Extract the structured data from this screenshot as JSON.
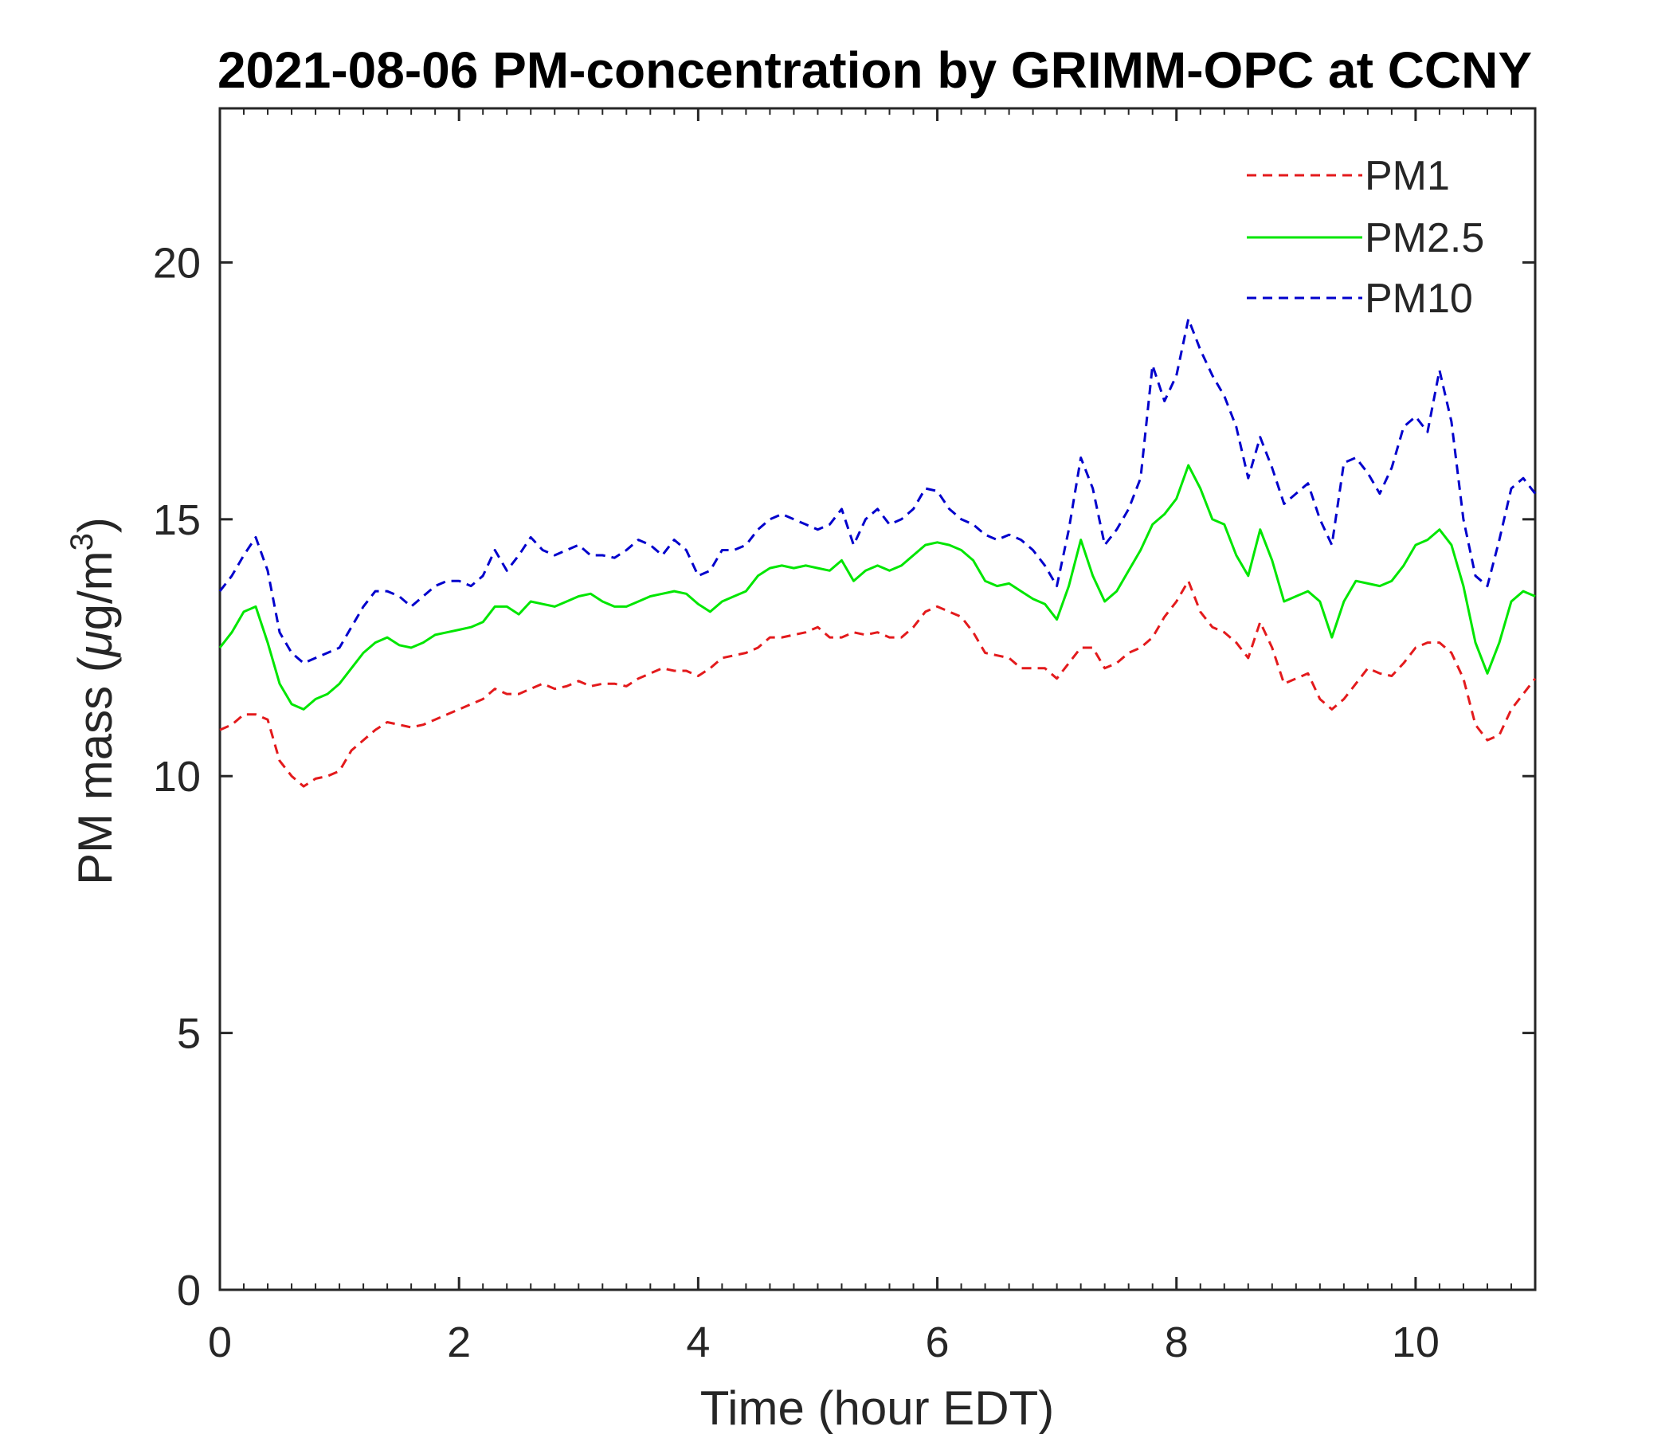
{
  "chart_data": {
    "type": "line",
    "title": "2021-08-06 PM-concentration by GRIMM-OPC at CCNY",
    "xlabel": "Time (hour EDT)",
    "ylabel": "PM mass (μg/m³)",
    "ylabel_parts": {
      "prefix": "PM mass (",
      "mu": "μ",
      "unit": "g/m",
      "exp": "3",
      "suffix": ")"
    },
    "xlim": [
      0,
      11
    ],
    "ylim": [
      0,
      23
    ],
    "xticks": [
      0,
      2,
      4,
      6,
      8,
      10
    ],
    "yticks": [
      0,
      5,
      10,
      15,
      20
    ],
    "grid": false,
    "legend": "top-right",
    "colors": {
      "PM1": "#e31a1c",
      "PM2.5": "#00e600",
      "PM10": "#0000cc",
      "axis": "#262626"
    },
    "series": [
      {
        "name": "PM1",
        "style": "dashed",
        "color": "#e31a1c",
        "x": [
          0,
          0.1,
          0.2,
          0.3,
          0.4,
          0.5,
          0.6,
          0.7,
          0.8,
          0.9,
          1.0,
          1.1,
          1.2,
          1.3,
          1.4,
          1.5,
          1.6,
          1.7,
          1.8,
          1.9,
          2.0,
          2.1,
          2.2,
          2.3,
          2.4,
          2.5,
          2.6,
          2.7,
          2.8,
          2.9,
          3.0,
          3.1,
          3.2,
          3.3,
          3.4,
          3.5,
          3.6,
          3.7,
          3.8,
          3.9,
          4.0,
          4.1,
          4.2,
          4.3,
          4.4,
          4.5,
          4.6,
          4.7,
          4.8,
          4.9,
          5.0,
          5.1,
          5.2,
          5.3,
          5.4,
          5.5,
          5.6,
          5.7,
          5.8,
          5.9,
          6.0,
          6.1,
          6.2,
          6.3,
          6.4,
          6.5,
          6.6,
          6.7,
          6.8,
          6.9,
          7.0,
          7.1,
          7.2,
          7.3,
          7.4,
          7.5,
          7.6,
          7.7,
          7.8,
          7.9,
          8.0,
          8.1,
          8.2,
          8.3,
          8.4,
          8.5,
          8.6,
          8.7,
          8.8,
          8.9,
          9.0,
          9.1,
          9.2,
          9.3,
          9.4,
          9.5,
          9.6,
          9.7,
          9.8,
          9.9,
          10.0,
          10.1,
          10.2,
          10.3,
          10.4,
          10.5,
          10.6,
          10.7,
          10.8,
          10.9,
          11.0
        ],
        "y": [
          10.9,
          11.0,
          11.2,
          11.2,
          11.1,
          10.3,
          10.0,
          9.8,
          9.95,
          10.0,
          10.1,
          10.5,
          10.7,
          10.9,
          11.05,
          11.0,
          10.95,
          11.0,
          11.1,
          11.2,
          11.3,
          11.4,
          11.5,
          11.7,
          11.6,
          11.6,
          11.7,
          11.8,
          11.7,
          11.75,
          11.85,
          11.75,
          11.8,
          11.8,
          11.75,
          11.9,
          12.0,
          12.1,
          12.05,
          12.05,
          11.95,
          12.1,
          12.3,
          12.35,
          12.4,
          12.5,
          12.7,
          12.7,
          12.75,
          12.8,
          12.9,
          12.7,
          12.7,
          12.8,
          12.75,
          12.8,
          12.7,
          12.7,
          12.9,
          13.2,
          13.3,
          13.2,
          13.1,
          12.8,
          12.4,
          12.35,
          12.3,
          12.1,
          12.1,
          12.1,
          11.9,
          12.2,
          12.5,
          12.5,
          12.1,
          12.2,
          12.4,
          12.5,
          12.7,
          13.1,
          13.4,
          13.8,
          13.2,
          12.9,
          12.8,
          12.6,
          12.3,
          13.0,
          12.5,
          11.8,
          11.9,
          12.0,
          11.5,
          11.3,
          11.5,
          11.8,
          12.1,
          12.0,
          11.95,
          12.2,
          12.5,
          12.6,
          12.6,
          12.4,
          11.9,
          11.0,
          10.7,
          10.8,
          11.3,
          11.6,
          11.9
        ]
      },
      {
        "name": "PM2.5",
        "style": "solid",
        "color": "#00e600",
        "x": [
          0,
          0.1,
          0.2,
          0.3,
          0.4,
          0.5,
          0.6,
          0.7,
          0.8,
          0.9,
          1.0,
          1.1,
          1.2,
          1.3,
          1.4,
          1.5,
          1.6,
          1.7,
          1.8,
          1.9,
          2.0,
          2.1,
          2.2,
          2.3,
          2.4,
          2.5,
          2.6,
          2.7,
          2.8,
          2.9,
          3.0,
          3.1,
          3.2,
          3.3,
          3.4,
          3.5,
          3.6,
          3.7,
          3.8,
          3.9,
          4.0,
          4.1,
          4.2,
          4.3,
          4.4,
          4.5,
          4.6,
          4.7,
          4.8,
          4.9,
          5.0,
          5.1,
          5.2,
          5.3,
          5.4,
          5.5,
          5.6,
          5.7,
          5.8,
          5.9,
          6.0,
          6.1,
          6.2,
          6.3,
          6.4,
          6.5,
          6.6,
          6.7,
          6.8,
          6.9,
          7.0,
          7.1,
          7.2,
          7.3,
          7.4,
          7.5,
          7.6,
          7.7,
          7.8,
          7.9,
          8.0,
          8.1,
          8.2,
          8.3,
          8.4,
          8.5,
          8.6,
          8.7,
          8.8,
          8.9,
          9.0,
          9.1,
          9.2,
          9.3,
          9.4,
          9.5,
          9.6,
          9.7,
          9.8,
          9.9,
          10.0,
          10.1,
          10.2,
          10.3,
          10.4,
          10.5,
          10.6,
          10.7,
          10.8,
          10.9,
          11.0
        ],
        "y": [
          12.5,
          12.8,
          13.2,
          13.3,
          12.6,
          11.8,
          11.4,
          11.3,
          11.5,
          11.6,
          11.8,
          12.1,
          12.4,
          12.6,
          12.7,
          12.55,
          12.5,
          12.6,
          12.75,
          12.8,
          12.85,
          12.9,
          13.0,
          13.3,
          13.3,
          13.15,
          13.4,
          13.35,
          13.3,
          13.4,
          13.5,
          13.55,
          13.4,
          13.3,
          13.3,
          13.4,
          13.5,
          13.55,
          13.6,
          13.55,
          13.35,
          13.2,
          13.4,
          13.5,
          13.6,
          13.9,
          14.05,
          14.1,
          14.05,
          14.1,
          14.05,
          14.0,
          14.2,
          13.8,
          14.0,
          14.1,
          14.0,
          14.1,
          14.3,
          14.5,
          14.55,
          14.5,
          14.4,
          14.2,
          13.8,
          13.7,
          13.75,
          13.6,
          13.45,
          13.35,
          13.05,
          13.7,
          14.6,
          13.9,
          13.4,
          13.6,
          14.0,
          14.4,
          14.9,
          15.1,
          15.4,
          16.05,
          15.6,
          15.0,
          14.9,
          14.3,
          13.9,
          14.8,
          14.2,
          13.4,
          13.5,
          13.6,
          13.4,
          12.7,
          13.4,
          13.8,
          13.75,
          13.7,
          13.8,
          14.1,
          14.5,
          14.6,
          14.8,
          14.5,
          13.7,
          12.6,
          12.0,
          12.6,
          13.4,
          13.6,
          13.5
        ]
      },
      {
        "name": "PM10",
        "style": "dashed",
        "color": "#0000cc",
        "x": [
          0,
          0.1,
          0.2,
          0.3,
          0.4,
          0.5,
          0.6,
          0.7,
          0.8,
          0.9,
          1.0,
          1.1,
          1.2,
          1.3,
          1.4,
          1.5,
          1.6,
          1.7,
          1.8,
          1.9,
          2.0,
          2.1,
          2.2,
          2.3,
          2.4,
          2.5,
          2.6,
          2.7,
          2.8,
          2.9,
          3.0,
          3.1,
          3.2,
          3.3,
          3.4,
          3.5,
          3.6,
          3.7,
          3.8,
          3.9,
          4.0,
          4.1,
          4.2,
          4.3,
          4.4,
          4.5,
          4.6,
          4.7,
          4.8,
          4.9,
          5.0,
          5.1,
          5.2,
          5.3,
          5.4,
          5.5,
          5.6,
          5.7,
          5.8,
          5.9,
          6.0,
          6.1,
          6.2,
          6.3,
          6.4,
          6.5,
          6.6,
          6.7,
          6.8,
          6.9,
          7.0,
          7.1,
          7.2,
          7.3,
          7.4,
          7.5,
          7.6,
          7.7,
          7.8,
          7.9,
          8.0,
          8.1,
          8.2,
          8.3,
          8.4,
          8.5,
          8.6,
          8.7,
          8.8,
          8.9,
          9.0,
          9.1,
          9.2,
          9.3,
          9.4,
          9.5,
          9.6,
          9.7,
          9.8,
          9.9,
          10.0,
          10.1,
          10.2,
          10.3,
          10.4,
          10.5,
          10.6,
          10.7,
          10.8,
          10.9,
          11.0
        ],
        "y": [
          13.6,
          13.9,
          14.3,
          14.65,
          14.0,
          12.8,
          12.4,
          12.2,
          12.3,
          12.4,
          12.5,
          12.9,
          13.3,
          13.6,
          13.6,
          13.5,
          13.3,
          13.5,
          13.7,
          13.8,
          13.8,
          13.7,
          13.9,
          14.4,
          14.0,
          14.3,
          14.65,
          14.4,
          14.3,
          14.4,
          14.5,
          14.3,
          14.3,
          14.25,
          14.4,
          14.6,
          14.5,
          14.3,
          14.6,
          14.4,
          13.9,
          14.0,
          14.4,
          14.4,
          14.5,
          14.8,
          15.0,
          15.1,
          15.0,
          14.9,
          14.8,
          14.9,
          15.2,
          14.5,
          15.0,
          15.2,
          14.9,
          15.0,
          15.2,
          15.6,
          15.55,
          15.2,
          15.0,
          14.9,
          14.7,
          14.6,
          14.7,
          14.6,
          14.4,
          14.1,
          13.7,
          14.8,
          16.2,
          15.6,
          14.5,
          14.8,
          15.2,
          15.8,
          18.0,
          17.3,
          17.8,
          18.9,
          18.3,
          17.8,
          17.4,
          16.8,
          15.8,
          16.6,
          16.0,
          15.3,
          15.5,
          15.7,
          15.0,
          14.5,
          16.1,
          16.2,
          15.9,
          15.5,
          16.0,
          16.8,
          17.0,
          16.7,
          17.9,
          16.9,
          15.0,
          13.9,
          13.7,
          14.6,
          15.6,
          15.8,
          15.5
        ]
      }
    ]
  }
}
